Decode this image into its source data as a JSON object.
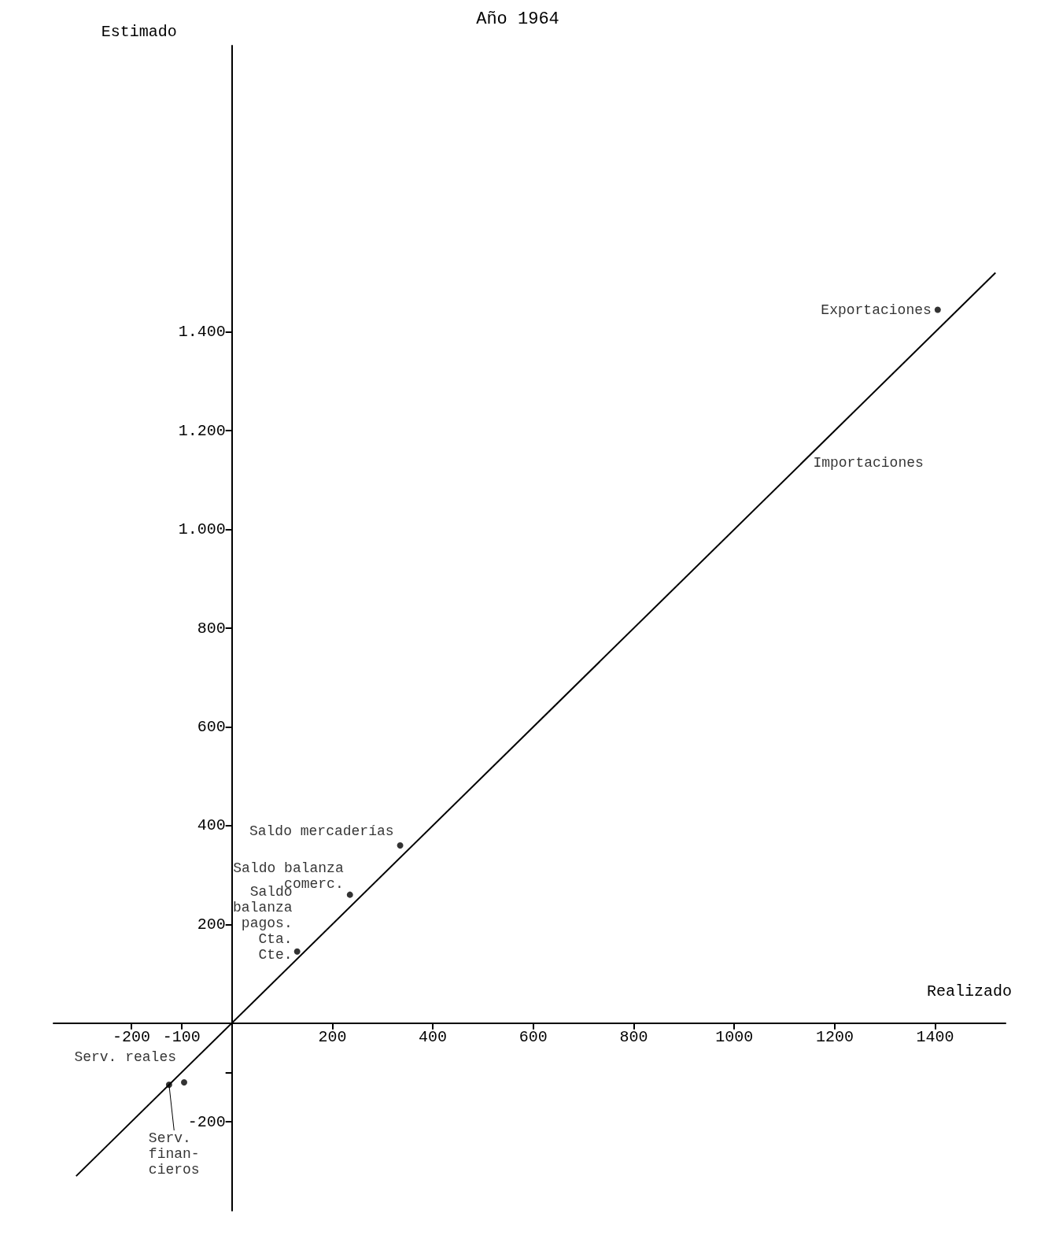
{
  "chart_data": {
    "type": "scatter",
    "title": "Año 1964",
    "xlabel": "Realizado",
    "ylabel": "Estimado",
    "x": [
      1405,
      335,
      235,
      130,
      -95,
      -125
    ],
    "series": [
      {
        "type": "scatter",
        "color": "#000000",
        "values": [
          1445,
          360,
          260,
          145,
          -120,
          -125
        ]
      },
      {
        "type": "line",
        "color": "#000000",
        "x": [
          -310,
          1520
        ],
        "values": [
          -310,
          1520
        ],
        "marker": "none"
      }
    ],
    "annotations": [
      {
        "text": "Exportaciones",
        "x": 1405,
        "y": 1445
      },
      {
        "text": "Importaciones",
        "x": 1135,
        "y": 1135
      },
      {
        "text": "Saldo mercaderías",
        "x": 335,
        "y": 360
      },
      {
        "text": "Saldo balanza\ncomerc.",
        "x": 235,
        "y": 260
      },
      {
        "text": "Saldo\nbalanza\npagos.\nCta.\nCte.",
        "x": 130,
        "y": 145
      },
      {
        "text": "Serv. reales",
        "x": -95,
        "y": -120
      },
      {
        "text": "Serv.\nfinan-\ncieros",
        "x": -125,
        "y": -125
      }
    ],
    "xlim": [
      -355,
      1540
    ],
    "ylim": [
      -380,
      1980
    ],
    "xticks": [
      -200,
      -100,
      200,
      400,
      600,
      800,
      1000,
      1200,
      1400
    ],
    "yticks": [
      {
        "value": -200,
        "label": "-200"
      },
      {
        "value": -100,
        "label": null
      },
      200,
      400,
      600,
      800,
      {
        "value": 1000,
        "label": "1.000"
      },
      {
        "value": 1200,
        "label": "1.200"
      },
      {
        "value": 1400,
        "label": "1.400"
      }
    ],
    "grid": false,
    "marker": "circle"
  }
}
